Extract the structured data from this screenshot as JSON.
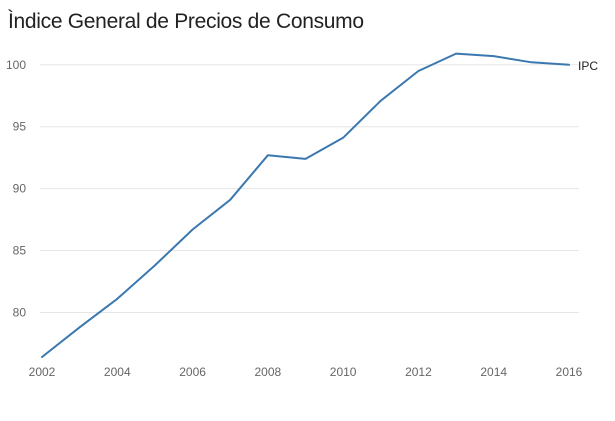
{
  "chart_data": {
    "type": "line",
    "title": "Ìndice General de Precios de Consumo",
    "xlabel": "",
    "ylabel": "",
    "xlim": [
      2002,
      2016
    ],
    "ylim": [
      76,
      102
    ],
    "x_ticks": [
      2002,
      2004,
      2006,
      2008,
      2010,
      2012,
      2014,
      2016
    ],
    "y_ticks": [
      80,
      85,
      90,
      95,
      100
    ],
    "grid": "horizontal",
    "legend": "none",
    "series": [
      {
        "name": "IPC",
        "color": "#3b78b0",
        "x": [
          2002,
          2003,
          2004,
          2005,
          2006,
          2007,
          2008,
          2009,
          2010,
          2011,
          2012,
          2013,
          2014,
          2015,
          2016
        ],
        "values": [
          76.4,
          78.8,
          81.1,
          83.8,
          86.7,
          89.1,
          92.7,
          92.4,
          94.1,
          97.1,
          99.5,
          100.9,
          100.7,
          100.2,
          100.0
        ]
      }
    ]
  }
}
